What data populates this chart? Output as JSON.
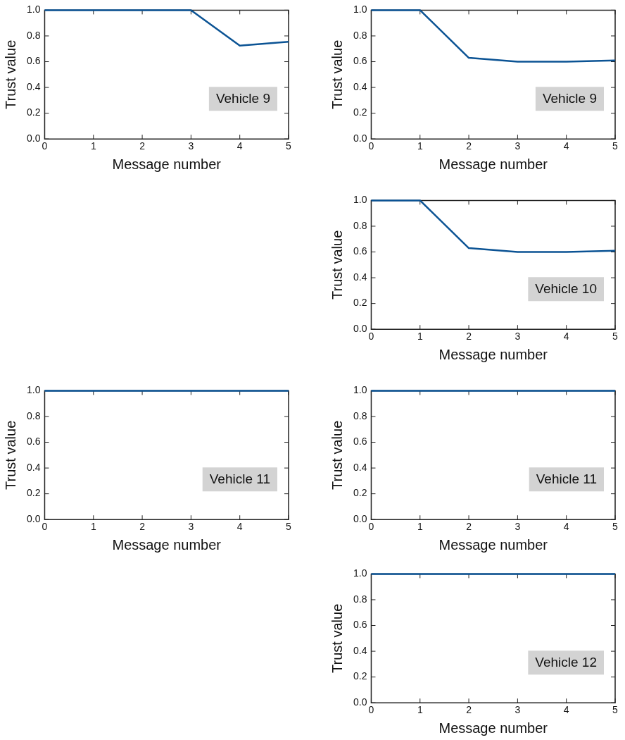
{
  "chart_data": [
    {
      "type": "line",
      "x": [
        0,
        1,
        2,
        3,
        4,
        5
      ],
      "series": [
        {
          "color": "#0b5394",
          "values": [
            1,
            1,
            1,
            1,
            0.725,
            0.755
          ]
        }
      ],
      "xlabel": "Message number",
      "ylabel": "Trust value",
      "annotations": [
        "Vehicle 9"
      ],
      "xlim": [
        0,
        5
      ],
      "xticks": [
        0,
        1,
        2,
        3,
        4,
        5
      ],
      "ylim": [
        0,
        1
      ],
      "yticks": [
        {
          "value": 0,
          "label": "0.0"
        },
        {
          "value": 0.2,
          "label": "0.2"
        },
        {
          "value": 0.4,
          "label": "0.4"
        },
        {
          "value": 0.6,
          "label": "0.6"
        },
        {
          "value": 0.8,
          "label": "0.8"
        },
        {
          "value": 1,
          "label": "1.0"
        }
      ],
      "grid": false,
      "legend": false,
      "marker": "none",
      "line_style": "solid"
    },
    {
      "type": "line",
      "x": [
        0,
        1,
        2,
        3,
        4,
        5
      ],
      "series": [
        {
          "color": "#0b5394",
          "values": [
            1,
            1,
            0.63,
            0.6,
            0.6,
            0.61
          ]
        }
      ],
      "xlabel": "Message number",
      "ylabel": "Trust value",
      "annotations": [
        "Vehicle 9"
      ],
      "xlim": [
        0,
        5
      ],
      "xticks": [
        0,
        1,
        2,
        3,
        4,
        5
      ],
      "ylim": [
        0,
        1
      ],
      "yticks": [
        {
          "value": 0,
          "label": "0.0"
        },
        {
          "value": 0.2,
          "label": "0.2"
        },
        {
          "value": 0.4,
          "label": "0.4"
        },
        {
          "value": 0.6,
          "label": "0.6"
        },
        {
          "value": 0.8,
          "label": "0.8"
        },
        {
          "value": 1,
          "label": "1.0"
        }
      ],
      "grid": false,
      "legend": false,
      "marker": "none",
      "line_style": "solid"
    },
    {
      "type": "line",
      "x": [
        0,
        1,
        2,
        3,
        4,
        5
      ],
      "series": [
        {
          "color": "#0b5394",
          "values": [
            1,
            1,
            0.63,
            0.6,
            0.6,
            0.61
          ]
        }
      ],
      "xlabel": "Message number",
      "ylabel": "Trust value",
      "annotations": [
        "Vehicle 10"
      ],
      "xlim": [
        0,
        5
      ],
      "xticks": [
        0,
        1,
        2,
        3,
        4,
        5
      ],
      "ylim": [
        0,
        1
      ],
      "yticks": [
        {
          "value": 0,
          "label": "0.0"
        },
        {
          "value": 0.2,
          "label": "0.2"
        },
        {
          "value": 0.4,
          "label": "0.4"
        },
        {
          "value": 0.6,
          "label": "0.6"
        },
        {
          "value": 0.8,
          "label": "0.8"
        },
        {
          "value": 1,
          "label": "1.0"
        }
      ],
      "grid": false,
      "legend": false,
      "marker": "none",
      "line_style": "solid"
    },
    {
      "type": "line",
      "x": [
        0,
        1,
        2,
        3,
        4,
        5
      ],
      "series": [
        {
          "color": "#0b5394",
          "values": [
            1,
            1,
            1,
            1,
            1,
            1
          ]
        }
      ],
      "xlabel": "Message number",
      "ylabel": "Trust value",
      "annotations": [
        "Vehicle 11"
      ],
      "xlim": [
        0,
        5
      ],
      "xticks": [
        0,
        1,
        2,
        3,
        4,
        5
      ],
      "ylim": [
        0,
        1
      ],
      "yticks": [
        {
          "value": 0,
          "label": "0.0"
        },
        {
          "value": 0.2,
          "label": "0.2"
        },
        {
          "value": 0.4,
          "label": "0.4"
        },
        {
          "value": 0.6,
          "label": "0.6"
        },
        {
          "value": 0.8,
          "label": "0.8"
        },
        {
          "value": 1,
          "label": "1.0"
        }
      ],
      "grid": false,
      "legend": false,
      "marker": "none",
      "line_style": "solid"
    },
    {
      "type": "line",
      "x": [
        0,
        1,
        2,
        3,
        4,
        5
      ],
      "series": [
        {
          "color": "#0b5394",
          "values": [
            1,
            1,
            1,
            1,
            1,
            1
          ]
        }
      ],
      "xlabel": "Message number",
      "ylabel": "Trust value",
      "annotations": [
        "Vehicle 11"
      ],
      "xlim": [
        0,
        5
      ],
      "xticks": [
        0,
        1,
        2,
        3,
        4,
        5
      ],
      "ylim": [
        0,
        1
      ],
      "yticks": [
        {
          "value": 0,
          "label": "0.0"
        },
        {
          "value": 0.2,
          "label": "0.2"
        },
        {
          "value": 0.4,
          "label": "0.4"
        },
        {
          "value": 0.6,
          "label": "0.6"
        },
        {
          "value": 0.8,
          "label": "0.8"
        },
        {
          "value": 1,
          "label": "1.0"
        }
      ],
      "grid": false,
      "legend": false,
      "marker": "none",
      "line_style": "solid"
    },
    {
      "type": "line",
      "x": [
        0,
        1,
        2,
        3,
        4,
        5
      ],
      "series": [
        {
          "color": "#0b5394",
          "values": [
            1,
            1,
            1,
            1,
            1,
            1
          ]
        }
      ],
      "xlabel": "Message number",
      "ylabel": "Trust value",
      "annotations": [
        "Vehicle 12"
      ],
      "xlim": [
        0,
        5
      ],
      "xticks": [
        0,
        1,
        2,
        3,
        4,
        5
      ],
      "ylim": [
        0,
        1
      ],
      "yticks": [
        {
          "value": 0,
          "label": "0.0"
        },
        {
          "value": 0.2,
          "label": "0.2"
        },
        {
          "value": 0.4,
          "label": "0.4"
        },
        {
          "value": 0.6,
          "label": "0.6"
        },
        {
          "value": 0.8,
          "label": "0.8"
        },
        {
          "value": 1,
          "label": "1.0"
        }
      ],
      "grid": false,
      "legend": false,
      "marker": "none",
      "line_style": "solid"
    }
  ]
}
